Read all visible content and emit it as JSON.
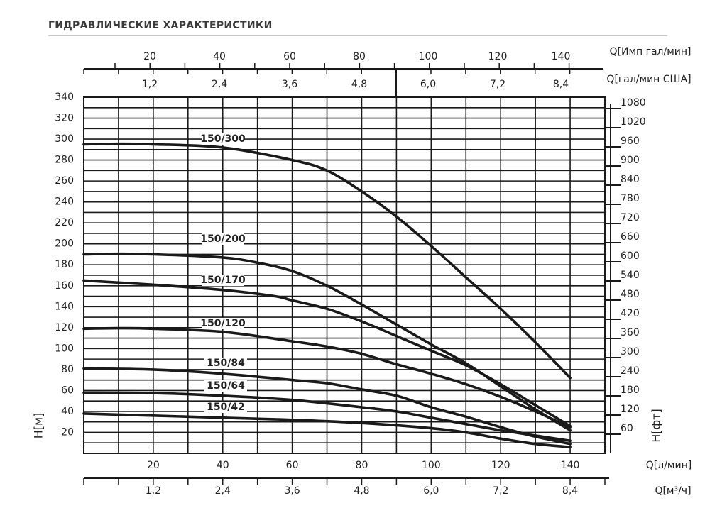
{
  "title": "ГИДРАВЛИЧЕСКИЕ ХАРАКТЕРИСТИКИ",
  "chart_data": {
    "type": "line",
    "title": "ГИДРАВЛИЧЕСКИЕ ХАРАКТЕРИСТИКИ",
    "xlabel": "Q[л/мин]",
    "ylabel": "H[м]",
    "y2label": "H[фт]",
    "xlim": [
      0,
      150
    ],
    "ylim": [
      0,
      340
    ],
    "grid": true,
    "x_ticks": [
      20,
      40,
      60,
      80,
      100,
      120,
      140
    ],
    "y_ticks": [
      20,
      40,
      60,
      80,
      100,
      120,
      140,
      160,
      180,
      200,
      220,
      240,
      260,
      280,
      300,
      320,
      340
    ],
    "y2_ticks": [
      60,
      120,
      180,
      240,
      300,
      360,
      420,
      480,
      540,
      600,
      660,
      720,
      780,
      840,
      900,
      960,
      1020,
      1080
    ],
    "x2_label": "Q[м³/ч]",
    "x2_ticks": [
      "1,2",
      "2,4",
      "3,6",
      "4,8",
      "6,0",
      "7,2",
      "8,4"
    ],
    "top_axis1_label": "Q[Имп гал/мин]",
    "top_axis1_ticks": [
      20,
      40,
      60,
      80,
      100,
      120,
      140
    ],
    "top_axis2_label": "Q[гал/мин США]",
    "top_axis2_ticks": [
      "1,2",
      "2,4",
      "3,6",
      "4,8",
      "6,0",
      "7,2",
      "8,4"
    ],
    "series": [
      {
        "name": "150/300",
        "x": [
          0,
          10,
          20,
          40,
          60,
          70,
          80,
          90,
          100,
          110,
          120,
          130,
          140
        ],
        "y": [
          295,
          295.5,
          295,
          292,
          280,
          270,
          250,
          226,
          198,
          168,
          138,
          106,
          72
        ]
      },
      {
        "name": "150/200",
        "x": [
          0,
          10,
          20,
          40,
          50,
          60,
          70,
          80,
          90,
          100,
          110,
          120,
          130,
          140
        ],
        "y": [
          190,
          190.5,
          190,
          187,
          182,
          174,
          160,
          142,
          123,
          104,
          86,
          64,
          42,
          22
        ]
      },
      {
        "name": "150/170",
        "x": [
          0,
          20,
          40,
          55,
          60,
          70,
          80,
          90,
          100,
          110,
          120,
          130,
          140
        ],
        "y": [
          165,
          161,
          156,
          150,
          146,
          138,
          126,
          112,
          98,
          84,
          66,
          46,
          26
        ]
      },
      {
        "name": "150/120",
        "x": [
          0,
          10,
          20,
          40,
          60,
          70,
          80,
          90,
          100,
          110,
          120,
          130,
          140
        ],
        "y": [
          119,
          119.5,
          119,
          116,
          107,
          102,
          95,
          85,
          76,
          66,
          54,
          40,
          25
        ]
      },
      {
        "name": "150/84",
        "x": [
          0,
          20,
          40,
          60,
          70,
          80,
          90,
          100,
          110,
          120,
          130,
          140
        ],
        "y": [
          81,
          80,
          76,
          70,
          67,
          61,
          55,
          44,
          35,
          25,
          16,
          9
        ]
      },
      {
        "name": "150/64",
        "x": [
          0,
          20,
          40,
          60,
          80,
          90,
          100,
          110,
          120,
          130,
          140
        ],
        "y": [
          58,
          57.5,
          55,
          51,
          44,
          40,
          34,
          28,
          22,
          17,
          12
        ]
      },
      {
        "name": "150/42",
        "x": [
          0,
          20,
          40,
          60,
          80,
          100,
          110,
          120,
          130,
          140
        ],
        "y": [
          38,
          36,
          34,
          32,
          29,
          24,
          20,
          14,
          9,
          6
        ]
      }
    ]
  }
}
